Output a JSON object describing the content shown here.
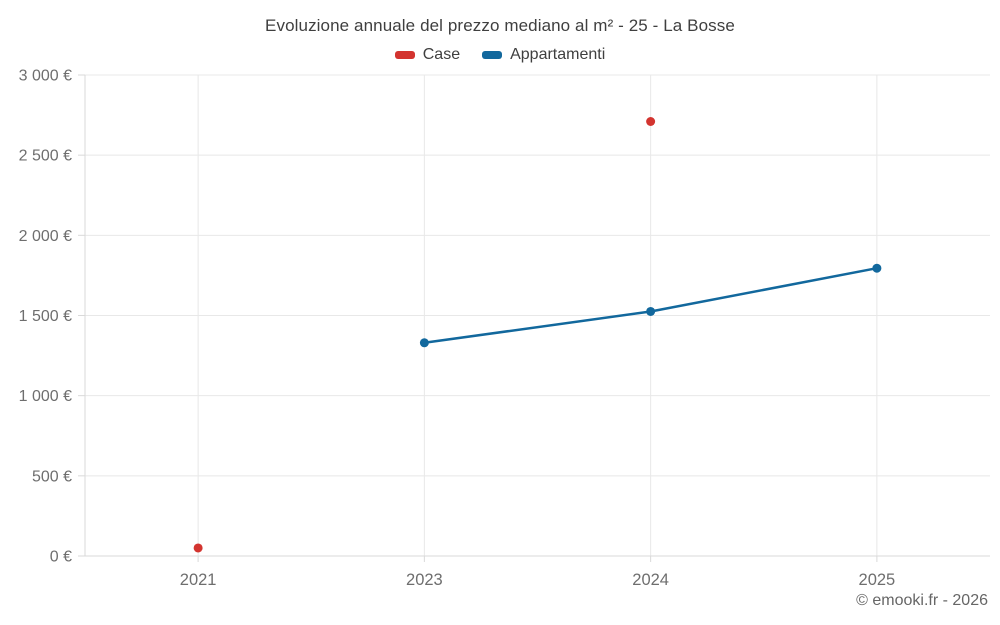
{
  "chart_data": {
    "type": "line",
    "title": "Evoluzione annuale del prezzo mediano al m² - 25 - La Bosse",
    "categories": [
      "2021",
      "2023",
      "2024",
      "2025"
    ],
    "series": [
      {
        "name": "Case",
        "color": "#d3342f",
        "values": [
          50,
          null,
          2710,
          null
        ]
      },
      {
        "name": "Appartamenti",
        "color": "#12689d",
        "values": [
          null,
          1330,
          1525,
          1795
        ]
      }
    ],
    "ylim": [
      0,
      3000
    ],
    "y_ticks": [
      {
        "value": 0,
        "label": "0 €"
      },
      {
        "value": 500,
        "label": "500 €"
      },
      {
        "value": 1000,
        "label": "1 000 €"
      },
      {
        "value": 1500,
        "label": "1 500 €"
      },
      {
        "value": 2000,
        "label": "2 000 €"
      },
      {
        "value": 2500,
        "label": "2 500 €"
      },
      {
        "value": 3000,
        "label": "3 000 €"
      }
    ],
    "xlabel": "",
    "ylabel": "",
    "grid": true,
    "legend_position": "top",
    "marker_radius": 4.5,
    "line_width": 2.5
  },
  "footer": {
    "copyright": "© emooki.fr - 2026"
  },
  "colors": {
    "grid": "#e8e8e8",
    "axis": "#d9d9d9",
    "tick_label": "#6e6e6e",
    "title": "#3f3f3f"
  }
}
